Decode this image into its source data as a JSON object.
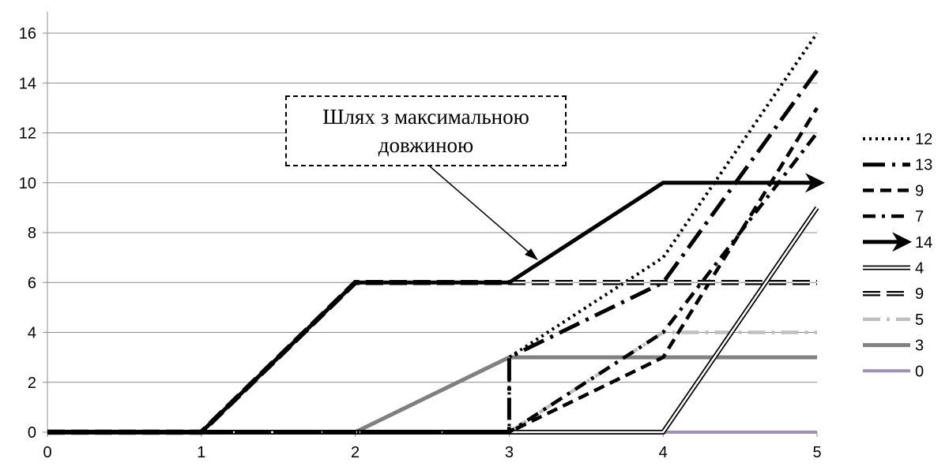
{
  "chart_data": {
    "type": "line",
    "xlim": [
      0,
      5
    ],
    "ylim": [
      0,
      16
    ],
    "x_ticks": [
      "0",
      "1",
      "2",
      "3",
      "4",
      "5"
    ],
    "y_ticks": [
      "0",
      "2",
      "4",
      "6",
      "8",
      "10",
      "12",
      "14",
      "16"
    ],
    "grid": true,
    "legend_position": "right",
    "annotation": "Шлях з максимальною довжиною",
    "series": [
      {
        "id": "s12",
        "name": "12",
        "style": "dotted",
        "color": "#000000",
        "points": [
          [
            0,
            0
          ],
          [
            3,
            0
          ],
          [
            3,
            3
          ],
          [
            4,
            7
          ],
          [
            5,
            16
          ]
        ]
      },
      {
        "id": "s13",
        "name": "13",
        "style": "long-dash-dot",
        "color": "#000000",
        "points": [
          [
            0,
            0
          ],
          [
            3,
            0
          ],
          [
            3,
            3
          ],
          [
            4,
            6
          ],
          [
            5,
            14.5
          ]
        ]
      },
      {
        "id": "s9a",
        "name": "9",
        "style": "dashed",
        "color": "#000000",
        "points": [
          [
            0,
            0
          ],
          [
            3,
            0
          ],
          [
            4,
            3
          ],
          [
            5,
            13
          ]
        ]
      },
      {
        "id": "s7",
        "name": "7",
        "style": "dash-dot",
        "color": "#000000",
        "points": [
          [
            0,
            0
          ],
          [
            3,
            0
          ],
          [
            4,
            4
          ],
          [
            5,
            12
          ]
        ]
      },
      {
        "id": "s14",
        "name": "14",
        "style": "arrow",
        "color": "#000000",
        "points": [
          [
            0,
            0
          ],
          [
            1,
            0
          ],
          [
            2,
            6
          ],
          [
            3,
            6
          ],
          [
            4,
            10
          ],
          [
            5,
            10
          ]
        ]
      },
      {
        "id": "s4",
        "name": "4",
        "style": "double",
        "color": "#000000",
        "points": [
          [
            0,
            0
          ],
          [
            4,
            0
          ],
          [
            5,
            9
          ]
        ]
      },
      {
        "id": "s9b",
        "name": "9",
        "style": "double-dash",
        "color": "#000000",
        "points": [
          [
            0,
            0
          ],
          [
            1,
            0
          ],
          [
            2,
            6
          ],
          [
            5,
            6
          ]
        ]
      },
      {
        "id": "s5",
        "name": "5",
        "style": "gray-dash",
        "color": "#bfbfbf",
        "points": [
          [
            0,
            0
          ],
          [
            3,
            0
          ],
          [
            4,
            4
          ],
          [
            5,
            4
          ]
        ]
      },
      {
        "id": "s3",
        "name": "3",
        "style": "gray-solid",
        "color": "#808080",
        "points": [
          [
            0,
            0
          ],
          [
            2,
            0
          ],
          [
            3,
            3
          ],
          [
            5,
            3
          ]
        ]
      },
      {
        "id": "s0",
        "name": "0",
        "style": "purple-solid",
        "color": "#9f8fb8",
        "points": [
          [
            0,
            0
          ],
          [
            5,
            0
          ]
        ]
      }
    ]
  }
}
